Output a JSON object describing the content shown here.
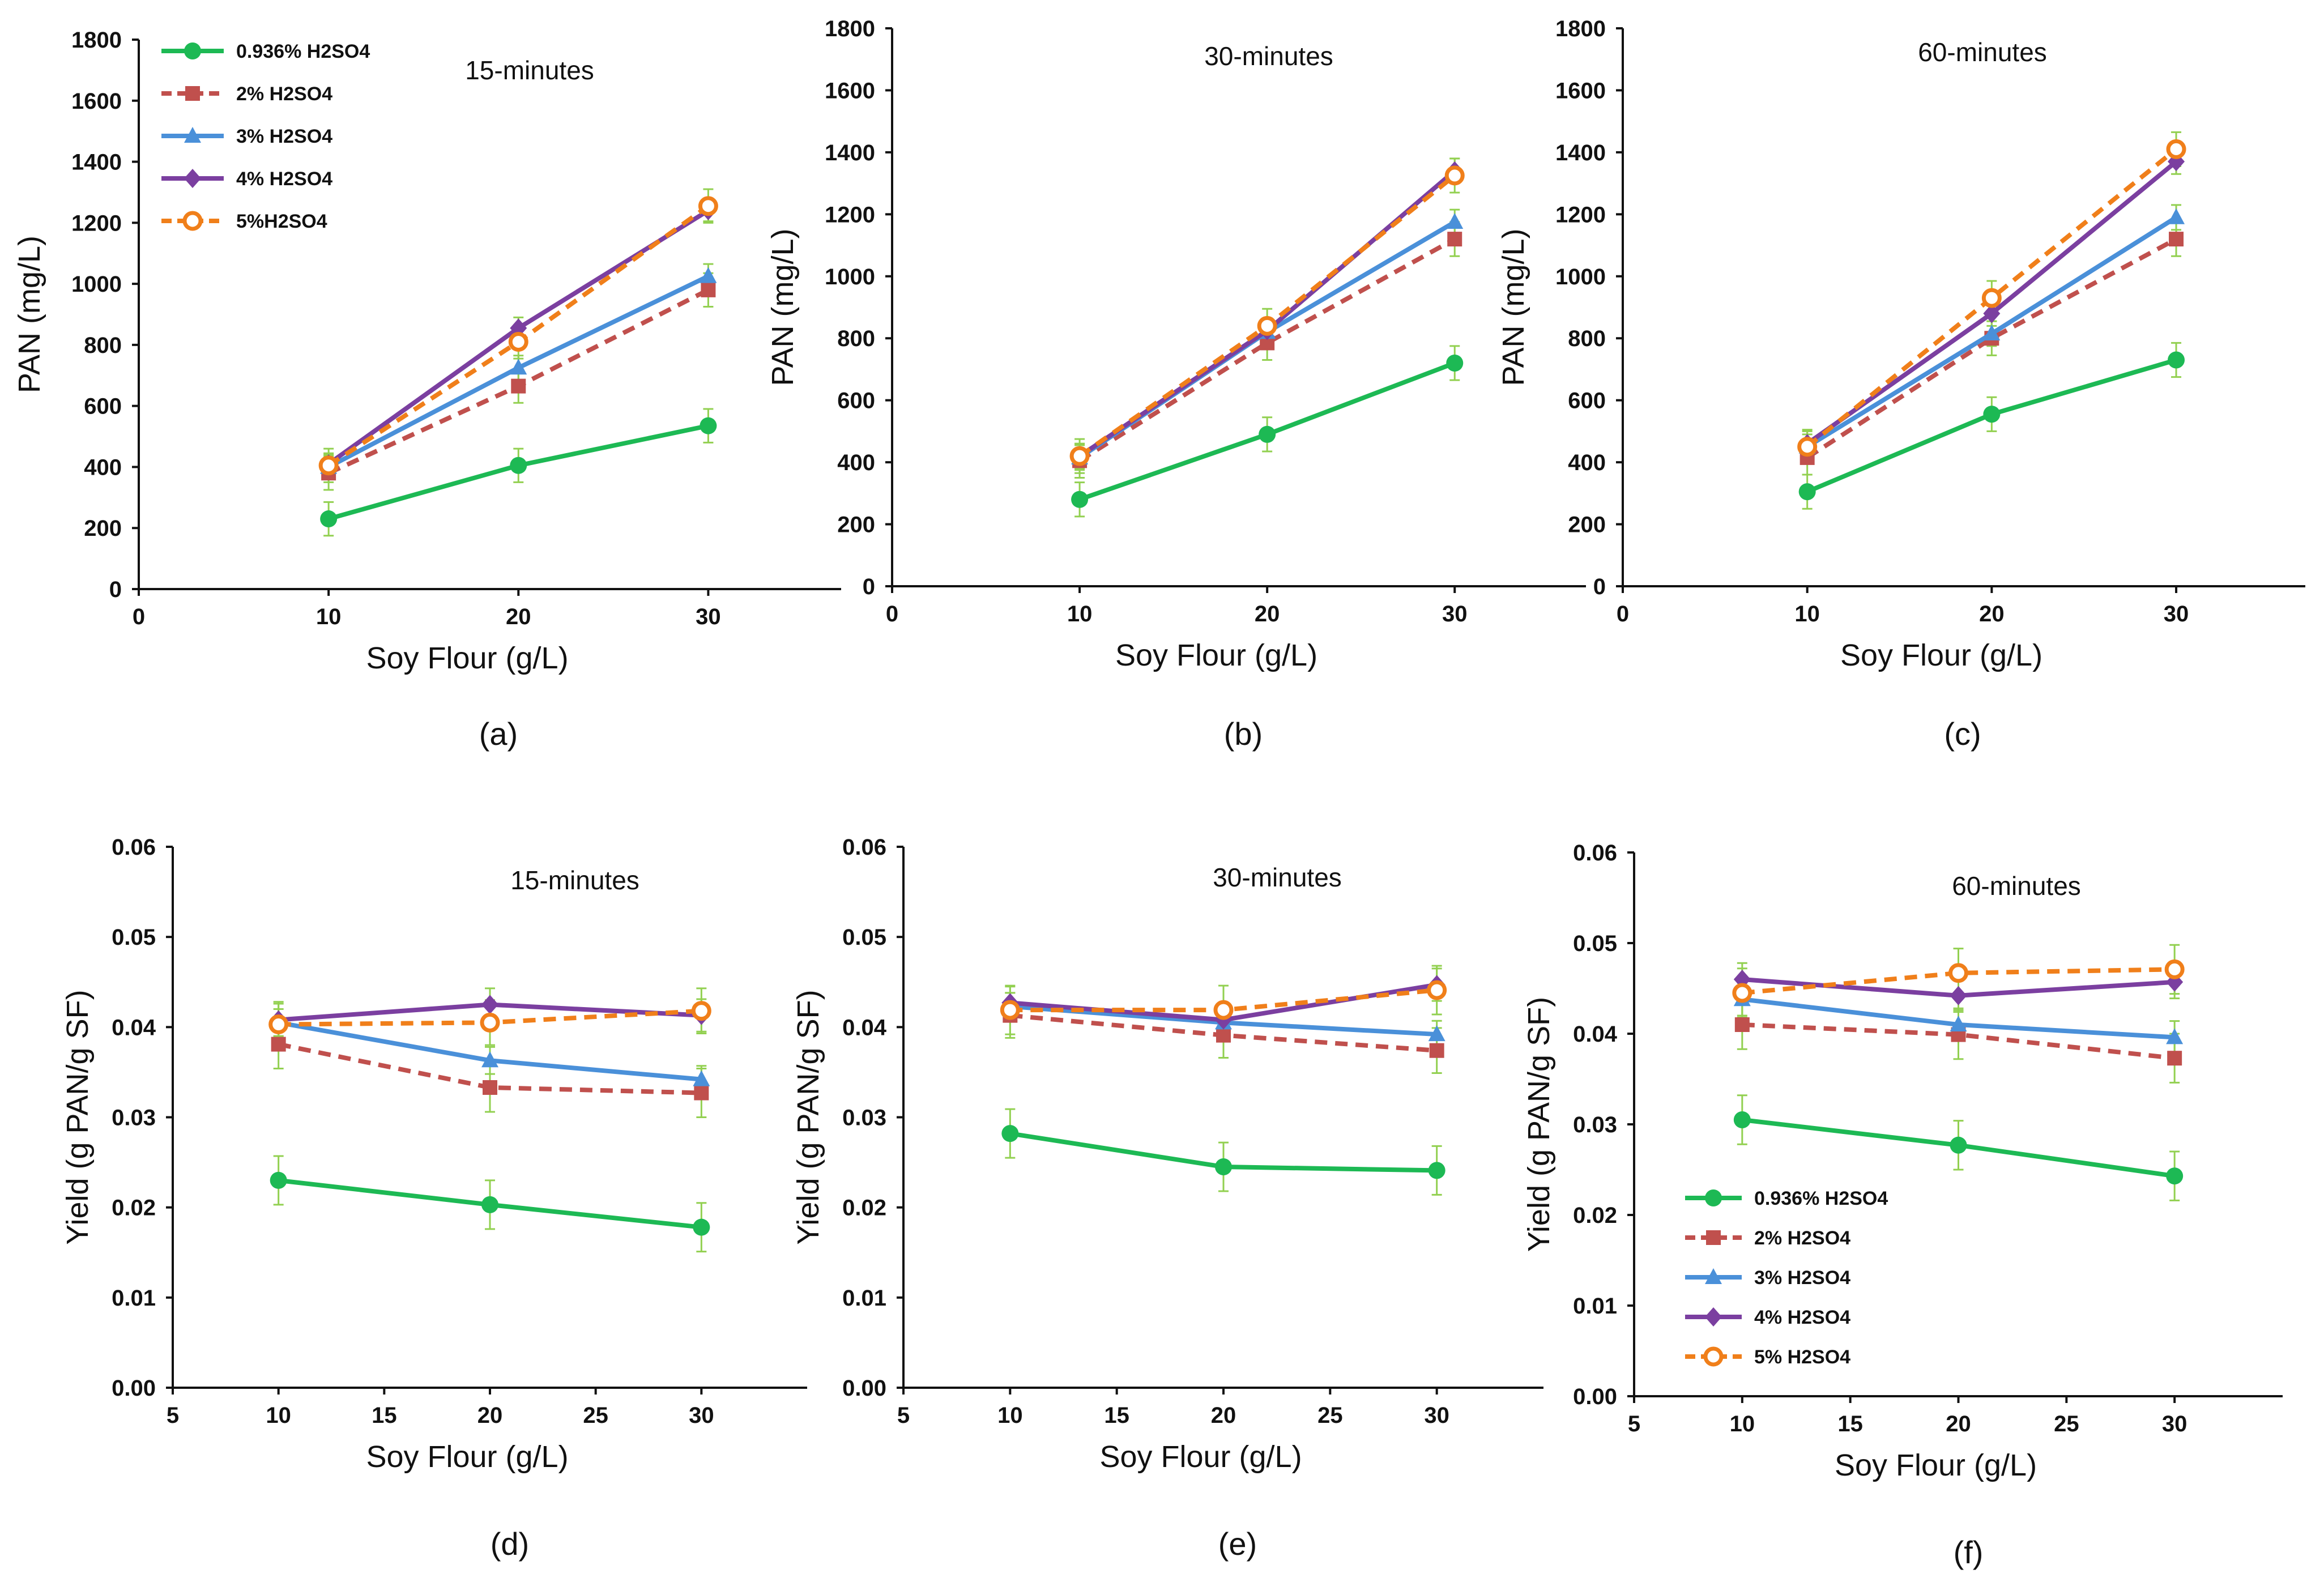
{
  "chart_data": [
    {
      "id": "a",
      "type": "line",
      "panel_label": "(a)",
      "title": "15-minutes",
      "xlabel": "Soy Flour (g/L)",
      "ylabel": "PAN (mg/L)",
      "xlim": [
        0,
        37
      ],
      "xticks": [
        0,
        10,
        20,
        30
      ],
      "ylim": [
        0,
        1800
      ],
      "yticks": [
        0,
        200,
        400,
        600,
        800,
        1000,
        1200,
        1400,
        1600,
        1800
      ],
      "ytick_labels": [
        "0",
        "200",
        "400",
        "600",
        "800",
        "1000",
        "1200",
        "1400",
        "1600",
        "1800"
      ],
      "x": [
        10,
        20,
        30
      ],
      "legend": "top-left",
      "series": [
        {
          "name": "0.936% H2SO4",
          "values": [
            230,
            405,
            535
          ],
          "errors": [
            55,
            55,
            55
          ]
        },
        {
          "name": "2% H2SO4",
          "values": [
            380,
            665,
            980
          ],
          "errors": [
            55,
            55,
            55
          ]
        },
        {
          "name": "3% H2SO4",
          "values": [
            400,
            725,
            1025
          ],
          "errors": [
            40,
            40,
            40
          ]
        },
        {
          "name": "4% H2SO4",
          "values": [
            410,
            855,
            1240
          ],
          "errors": [
            35,
            35,
            35
          ]
        },
        {
          "name": "5%H2SO4",
          "values": [
            405,
            810,
            1255
          ],
          "errors": [
            55,
            55,
            55
          ]
        }
      ]
    },
    {
      "id": "b",
      "type": "line",
      "panel_label": "(b)",
      "title": "30-minutes",
      "xlabel": "Soy Flour (g/L)",
      "ylabel": "PAN (mg/L)",
      "xlim": [
        0,
        37
      ],
      "xticks": [
        0,
        10,
        20,
        30
      ],
      "ylim": [
        0,
        1800
      ],
      "yticks": [
        0,
        200,
        400,
        600,
        800,
        1000,
        1200,
        1400,
        1600,
        1800
      ],
      "ytick_labels": [
        "0",
        "200",
        "400",
        "600",
        "800",
        "1000",
        "1200",
        "1400",
        "1600",
        "1800"
      ],
      "x": [
        10,
        20,
        30
      ],
      "series": [
        {
          "name": "0.936% H2SO4",
          "values": [
            280,
            490,
            720
          ],
          "errors": [
            55,
            55,
            55
          ]
        },
        {
          "name": "2% H2SO4",
          "values": [
            405,
            785,
            1120
          ],
          "errors": [
            55,
            55,
            55
          ]
        },
        {
          "name": "3% H2SO4",
          "values": [
            415,
            820,
            1175
          ],
          "errors": [
            40,
            40,
            40
          ]
        },
        {
          "name": "4% H2SO4",
          "values": [
            420,
            825,
            1340
          ],
          "errors": [
            40,
            40,
            40
          ]
        },
        {
          "name": "5% H2SO4",
          "values": [
            420,
            840,
            1325
          ],
          "errors": [
            55,
            55,
            55
          ]
        }
      ]
    },
    {
      "id": "c",
      "type": "line",
      "panel_label": "(c)",
      "title": "60-minutes",
      "xlabel": "Soy Flour (g/L)",
      "ylabel": "PAN (mg/L)",
      "xlim": [
        0,
        37
      ],
      "xticks": [
        0,
        10,
        20,
        30
      ],
      "ylim": [
        0,
        1800
      ],
      "yticks": [
        0,
        200,
        400,
        600,
        800,
        1000,
        1200,
        1400,
        1600,
        1800
      ],
      "ytick_labels": [
        "0",
        "200",
        "400",
        "600",
        "800",
        "1000",
        "1200",
        "1400",
        "1600",
        "1800"
      ],
      "x": [
        10,
        20,
        30
      ],
      "series": [
        {
          "name": "0.936% H2SO4",
          "values": [
            305,
            555,
            730
          ],
          "errors": [
            55,
            55,
            55
          ]
        },
        {
          "name": "2% H2SO4",
          "values": [
            415,
            800,
            1120
          ],
          "errors": [
            55,
            55,
            55
          ]
        },
        {
          "name": "3% H2SO4",
          "values": [
            450,
            815,
            1190
          ],
          "errors": [
            40,
            40,
            40
          ]
        },
        {
          "name": "4% H2SO4",
          "values": [
            460,
            880,
            1370
          ],
          "errors": [
            40,
            40,
            40
          ]
        },
        {
          "name": "5% H2SO4",
          "values": [
            450,
            930,
            1410
          ],
          "errors": [
            55,
            55,
            55
          ]
        }
      ]
    },
    {
      "id": "d",
      "type": "line",
      "panel_label": "(d)",
      "title": "15-minutes",
      "xlabel": "Soy Flour (g/L)",
      "ylabel": "Yield (g PAN/g SF)",
      "xlim": [
        5,
        35
      ],
      "xticks": [
        5,
        10,
        15,
        20,
        25,
        30
      ],
      "ylim": [
        0,
        0.06
      ],
      "yticks": [
        0,
        0.01,
        0.02,
        0.03,
        0.04,
        0.05,
        0.06
      ],
      "ytick_labels": [
        "0.00",
        "0.01",
        "0.02",
        "0.03",
        "0.04",
        "0.05",
        "0.06"
      ],
      "x": [
        10,
        20,
        30
      ],
      "series": [
        {
          "name": "0.936% H2SO4",
          "values": [
            0.023,
            0.0203,
            0.0178
          ],
          "errors": [
            0.0027,
            0.0027,
            0.0027
          ]
        },
        {
          "name": "2% H2SO4",
          "values": [
            0.0381,
            0.0333,
            0.0327
          ],
          "errors": [
            0.0027,
            0.0027,
            0.0027
          ]
        },
        {
          "name": "3% H2SO4",
          "values": [
            0.0405,
            0.0363,
            0.0342
          ],
          "errors": [
            0.0015,
            0.0015,
            0.0015
          ]
        },
        {
          "name": "4% H2SO4",
          "values": [
            0.0408,
            0.0425,
            0.0413
          ],
          "errors": [
            0.0018,
            0.0018,
            0.0018
          ]
        },
        {
          "name": "5% H2SO4",
          "values": [
            0.0403,
            0.0405,
            0.0418
          ],
          "errors": [
            0.0025,
            0.0025,
            0.0025
          ]
        }
      ]
    },
    {
      "id": "e",
      "type": "line",
      "panel_label": "(e)",
      "title": "30-minutes",
      "xlabel": "Soy Flour (g/L)",
      "ylabel": "Yield (g PAN/g SF)",
      "xlim": [
        5,
        35
      ],
      "xticks": [
        5,
        10,
        15,
        20,
        25,
        30
      ],
      "ylim": [
        0,
        0.06
      ],
      "yticks": [
        0,
        0.01,
        0.02,
        0.03,
        0.04,
        0.05,
        0.06
      ],
      "ytick_labels": [
        "0.00",
        "0.01",
        "0.02",
        "0.03",
        "0.04",
        "0.05",
        "0.06"
      ],
      "x": [
        10,
        20,
        30
      ],
      "series": [
        {
          "name": "0.936% H2SO4",
          "values": [
            0.0282,
            0.0245,
            0.0241
          ],
          "errors": [
            0.0027,
            0.0027,
            0.0027
          ]
        },
        {
          "name": "2% H2SO4",
          "values": [
            0.0413,
            0.0391,
            0.0374
          ],
          "errors": [
            0.0025,
            0.0025,
            0.0025
          ]
        },
        {
          "name": "3% H2SO4",
          "values": [
            0.0423,
            0.0405,
            0.0392
          ],
          "errors": [
            0.0015,
            0.0015,
            0.0015
          ]
        },
        {
          "name": "4% H2SO4",
          "values": [
            0.0427,
            0.0408,
            0.0447
          ],
          "errors": [
            0.0018,
            0.0018,
            0.0018
          ]
        },
        {
          "name": "5% H2SO4",
          "values": [
            0.0419,
            0.0419,
            0.0441
          ],
          "errors": [
            0.0027,
            0.0027,
            0.0027
          ]
        }
      ]
    },
    {
      "id": "f",
      "type": "line",
      "panel_label": "(f)",
      "title": "60-minutes",
      "xlabel": "Soy Flour (g/L)",
      "ylabel": "Yield (g PAN/g SF)",
      "xlim": [
        5,
        35
      ],
      "xticks": [
        5,
        10,
        15,
        20,
        25,
        30
      ],
      "ylim": [
        0,
        0.06
      ],
      "yticks": [
        0,
        0.01,
        0.02,
        0.03,
        0.04,
        0.05,
        0.06
      ],
      "ytick_labels": [
        "0.00",
        "0.01",
        "0.02",
        "0.03",
        "0.04",
        "0.05",
        "0.06"
      ],
      "x": [
        10,
        20,
        30
      ],
      "legend": "lower-left",
      "series": [
        {
          "name": "0.936% H2SO4",
          "values": [
            0.0305,
            0.0277,
            0.0243
          ],
          "errors": [
            0.0027,
            0.0027,
            0.0027
          ]
        },
        {
          "name": "2% H2SO4",
          "values": [
            0.041,
            0.0399,
            0.0373
          ],
          "errors": [
            0.0027,
            0.0027,
            0.0027
          ]
        },
        {
          "name": "3% H2SO4",
          "values": [
            0.0438,
            0.041,
            0.0396
          ],
          "errors": [
            0.0018,
            0.0018,
            0.0018
          ]
        },
        {
          "name": "4% H2SO4",
          "values": [
            0.046,
            0.0442,
            0.0457
          ],
          "errors": [
            0.0018,
            0.0018,
            0.0018
          ]
        },
        {
          "name": "5% H2SO4",
          "values": [
            0.0445,
            0.0467,
            0.0471
          ],
          "errors": [
            0.0027,
            0.0027,
            0.0027
          ]
        }
      ]
    }
  ],
  "series_style": [
    {
      "color": "#1db954",
      "marker": "circle",
      "dashed": false
    },
    {
      "color": "#c0504d",
      "marker": "square",
      "dashed": true
    },
    {
      "color": "#4a90d9",
      "marker": "triangle",
      "dashed": false
    },
    {
      "color": "#7b3fa0",
      "marker": "diamond",
      "dashed": false
    },
    {
      "color": "#f07f1a",
      "marker": "open-circle",
      "dashed": true
    }
  ],
  "errorbar_color": "#92d050"
}
